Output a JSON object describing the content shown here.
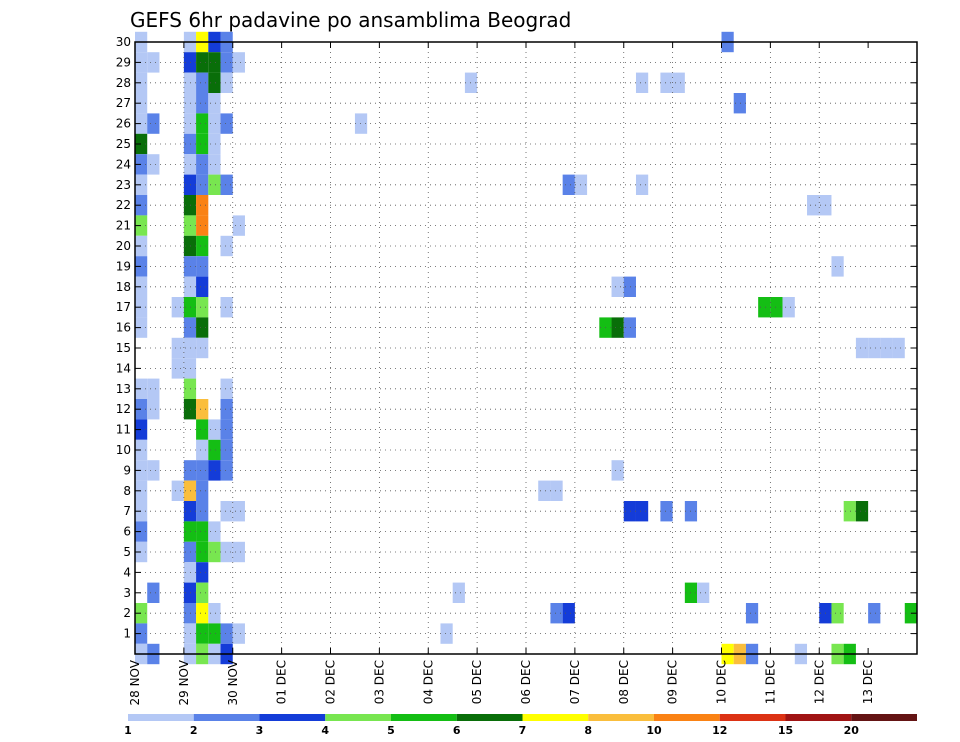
{
  "chart_data": {
    "type": "heatmap",
    "title": "GEFS 6hr padavine po ansamblima Beograd",
    "xlabel": "",
    "ylabel": "",
    "x_tick_labels": [
      "28 NOV",
      "29 NOV",
      "30 NOV",
      "01 DEC",
      "02 DEC",
      "03 DEC",
      "04 DEC",
      "05 DEC",
      "06 DEC",
      "07 DEC",
      "08 DEC",
      "09 DEC",
      "10 DEC",
      "11 DEC",
      "12 DEC",
      "13 DEC"
    ],
    "y_tick_labels": [
      "1",
      "2",
      "3",
      "4",
      "5",
      "6",
      "7",
      "8",
      "9",
      "10",
      "11",
      "12",
      "13",
      "14",
      "15",
      "16",
      "17",
      "18",
      "19",
      "20",
      "21",
      "22",
      "23",
      "24",
      "25",
      "26",
      "27",
      "28",
      "29",
      "30"
    ],
    "y_range": [
      0,
      30
    ],
    "x_range_steps": [
      0,
      60
    ],
    "step_hours": 6,
    "grid": true,
    "colorbar": {
      "labels": [
        "1",
        "2",
        "3",
        "4",
        "5",
        "6",
        "7",
        "8",
        "10",
        "12",
        "15",
        "20"
      ],
      "colors": [
        "#b4c8f5",
        "#5a82e8",
        "#143cd8",
        "#78e650",
        "#14be14",
        "#096e09",
        "#ffff00",
        "#fabe3c",
        "#fa8214",
        "#dc3214",
        "#a01414",
        "#641414"
      ]
    },
    "cells": [
      [
        0,
        30,
        1
      ],
      [
        0,
        29,
        1
      ],
      [
        0,
        28,
        1
      ],
      [
        0,
        27,
        1
      ],
      [
        0,
        26,
        1
      ],
      [
        0,
        25,
        6
      ],
      [
        0,
        24,
        2
      ],
      [
        0,
        23,
        1
      ],
      [
        0,
        22,
        2
      ],
      [
        0,
        21,
        4
      ],
      [
        0,
        20,
        1
      ],
      [
        0,
        19,
        2
      ],
      [
        0,
        18,
        1
      ],
      [
        0,
        17,
        1
      ],
      [
        0,
        16,
        1
      ],
      [
        0,
        13,
        1
      ],
      [
        0,
        12,
        2
      ],
      [
        0,
        11,
        3
      ],
      [
        0,
        10,
        1
      ],
      [
        0,
        9,
        1
      ],
      [
        0,
        8,
        1
      ],
      [
        0,
        7,
        1
      ],
      [
        0,
        6,
        2
      ],
      [
        0,
        5,
        1
      ],
      [
        0,
        2,
        4
      ],
      [
        0,
        1,
        2
      ],
      [
        0,
        0,
        1
      ],
      [
        1,
        29,
        1
      ],
      [
        1,
        26,
        2
      ],
      [
        1,
        24,
        1
      ],
      [
        1,
        13,
        1
      ],
      [
        1,
        12,
        1
      ],
      [
        1,
        9,
        1
      ],
      [
        1,
        3,
        2
      ],
      [
        1,
        0,
        2
      ],
      [
        3,
        17,
        1
      ],
      [
        3,
        15,
        1
      ],
      [
        3,
        14,
        1
      ],
      [
        3,
        8,
        1
      ],
      [
        4,
        30,
        1
      ],
      [
        4,
        29,
        3
      ],
      [
        4,
        28,
        1
      ],
      [
        4,
        27,
        1
      ],
      [
        4,
        26,
        1
      ],
      [
        4,
        25,
        2
      ],
      [
        4,
        24,
        1
      ],
      [
        4,
        23,
        3
      ],
      [
        4,
        22,
        6
      ],
      [
        4,
        21,
        4
      ],
      [
        4,
        20,
        6
      ],
      [
        4,
        19,
        2
      ],
      [
        4,
        18,
        1
      ],
      [
        4,
        17,
        5
      ],
      [
        4,
        16,
        2
      ],
      [
        4,
        15,
        1
      ],
      [
        4,
        14,
        1
      ],
      [
        4,
        13,
        4
      ],
      [
        4,
        12,
        6
      ],
      [
        4,
        9,
        2
      ],
      [
        4,
        8,
        8
      ],
      [
        4,
        7,
        3
      ],
      [
        4,
        6,
        5
      ],
      [
        4,
        5,
        2
      ],
      [
        4,
        4,
        1
      ],
      [
        4,
        3,
        3
      ],
      [
        4,
        2,
        2
      ],
      [
        4,
        1,
        1
      ],
      [
        4,
        0,
        1
      ],
      [
        5,
        30,
        7
      ],
      [
        5,
        29,
        6
      ],
      [
        5,
        28,
        2
      ],
      [
        5,
        27,
        2
      ],
      [
        5,
        26,
        5
      ],
      [
        5,
        25,
        5
      ],
      [
        5,
        24,
        2
      ],
      [
        5,
        23,
        2
      ],
      [
        5,
        22,
        9
      ],
      [
        5,
        21,
        9
      ],
      [
        5,
        20,
        5
      ],
      [
        5,
        19,
        2
      ],
      [
        5,
        18,
        3
      ],
      [
        5,
        17,
        4
      ],
      [
        5,
        16,
        6
      ],
      [
        5,
        15,
        1
      ],
      [
        5,
        12,
        8
      ],
      [
        5,
        11,
        5
      ],
      [
        5,
        10,
        1
      ],
      [
        5,
        9,
        2
      ],
      [
        5,
        8,
        2
      ],
      [
        5,
        7,
        2
      ],
      [
        5,
        6,
        5
      ],
      [
        5,
        5,
        5
      ],
      [
        5,
        4,
        3
      ],
      [
        5,
        3,
        4
      ],
      [
        5,
        2,
        7
      ],
      [
        5,
        1,
        5
      ],
      [
        5,
        0,
        4
      ],
      [
        6,
        30,
        3
      ],
      [
        6,
        29,
        6
      ],
      [
        6,
        28,
        6
      ],
      [
        6,
        27,
        1
      ],
      [
        6,
        26,
        1
      ],
      [
        6,
        25,
        1
      ],
      [
        6,
        24,
        1
      ],
      [
        6,
        23,
        4
      ],
      [
        6,
        11,
        1
      ],
      [
        6,
        10,
        5
      ],
      [
        6,
        9,
        3
      ],
      [
        6,
        6,
        1
      ],
      [
        6,
        5,
        4
      ],
      [
        6,
        2,
        1
      ],
      [
        6,
        1,
        5
      ],
      [
        6,
        0,
        1
      ],
      [
        7,
        30,
        2
      ],
      [
        7,
        29,
        2
      ],
      [
        7,
        28,
        1
      ],
      [
        7,
        26,
        2
      ],
      [
        7,
        23,
        2
      ],
      [
        7,
        20,
        1
      ],
      [
        7,
        17,
        1
      ],
      [
        7,
        13,
        1
      ],
      [
        7,
        12,
        2
      ],
      [
        7,
        11,
        2
      ],
      [
        7,
        10,
        2
      ],
      [
        7,
        9,
        2
      ],
      [
        7,
        7,
        1
      ],
      [
        7,
        5,
        1
      ],
      [
        7,
        1,
        2
      ],
      [
        7,
        0,
        3
      ],
      [
        8,
        29,
        1
      ],
      [
        8,
        21,
        1
      ],
      [
        8,
        7,
        1
      ],
      [
        8,
        5,
        1
      ],
      [
        8,
        1,
        1
      ],
      [
        18,
        26,
        1
      ],
      [
        25,
        1,
        1
      ],
      [
        26,
        3,
        1
      ],
      [
        27,
        28,
        1
      ],
      [
        33,
        8,
        1
      ],
      [
        34,
        8,
        1
      ],
      [
        34,
        2,
        2
      ],
      [
        35,
        2,
        3
      ],
      [
        35,
        23,
        2
      ],
      [
        36,
        23,
        1
      ],
      [
        38,
        16,
        5
      ],
      [
        39,
        16,
        6
      ],
      [
        39,
        18,
        1
      ],
      [
        39,
        9,
        1
      ],
      [
        40,
        18,
        2
      ],
      [
        40,
        16,
        2
      ],
      [
        40,
        7,
        3
      ],
      [
        41,
        7,
        3
      ],
      [
        41,
        28,
        1
      ],
      [
        41,
        23,
        1
      ],
      [
        43,
        28,
        1
      ],
      [
        43,
        7,
        2
      ],
      [
        44,
        28,
        1
      ],
      [
        45,
        7,
        2
      ],
      [
        45,
        3,
        5
      ],
      [
        46,
        3,
        1
      ],
      [
        48,
        30,
        2
      ],
      [
        48,
        0,
        7
      ],
      [
        49,
        0,
        8
      ],
      [
        49,
        27,
        2
      ],
      [
        50,
        0,
        2
      ],
      [
        50,
        2,
        2
      ],
      [
        51,
        17,
        5
      ],
      [
        52,
        17,
        5
      ],
      [
        53,
        17,
        1
      ],
      [
        54,
        0,
        1
      ],
      [
        55,
        22,
        1
      ],
      [
        56,
        22,
        1
      ],
      [
        56,
        2,
        3
      ],
      [
        57,
        2,
        4
      ],
      [
        57,
        0,
        4
      ],
      [
        57,
        19,
        1
      ],
      [
        58,
        7,
        4
      ],
      [
        58,
        0,
        5
      ],
      [
        59,
        7,
        6
      ],
      [
        59,
        15,
        1
      ],
      [
        60,
        15,
        1
      ],
      [
        61,
        15,
        1
      ],
      [
        60,
        2,
        2
      ],
      [
        62,
        15,
        1
      ],
      [
        63,
        2,
        5
      ]
    ]
  }
}
